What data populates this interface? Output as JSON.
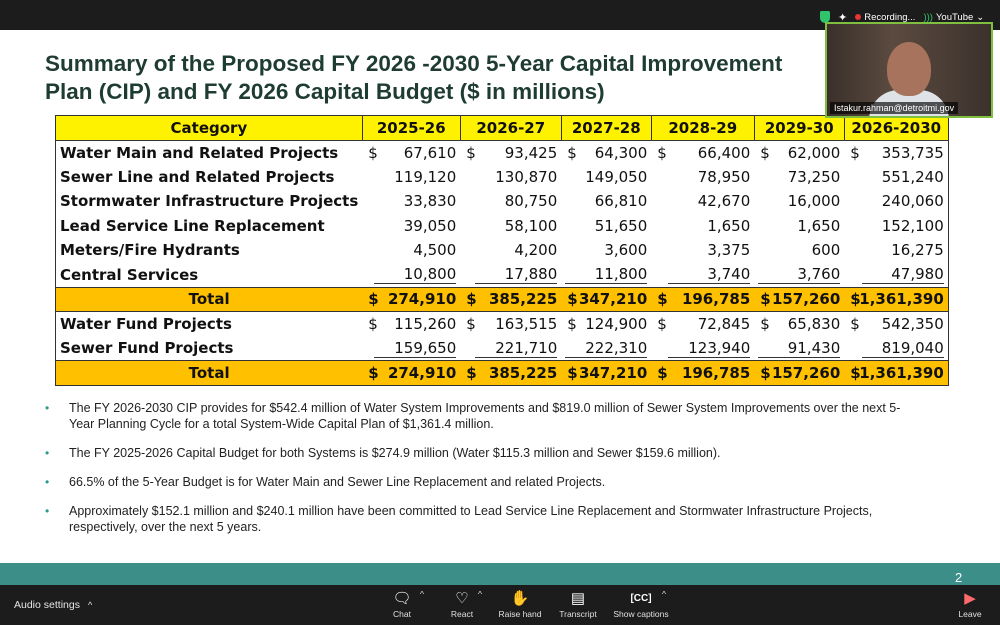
{
  "slide": {
    "title_line1": "Summary of the Proposed FY 2026 -2030 5-Year Capital Improvement",
    "title_line2": "Plan (CIP) and FY 2026 Capital Budget ($ in millions)",
    "page_number": "2",
    "colors": {
      "header_fill": "#fff200",
      "total_fill": "#ffc000",
      "title_color": "#1f3c33",
      "footer_band": "#3b8f88"
    },
    "table": {
      "headers": [
        "Category",
        "2025-26",
        "2026-27",
        "2027-28",
        "2028-29",
        "2029-30",
        "2026-2030"
      ],
      "rows": [
        {
          "category": "Water Main and Related Projects",
          "values": [
            "67,610",
            "93,425",
            "64,300",
            "66,400",
            "62,000",
            "353,735"
          ],
          "dollar": true
        },
        {
          "category": "Sewer Line and Related Projects",
          "values": [
            "119,120",
            "130,870",
            "149,050",
            "78,950",
            "73,250",
            "551,240"
          ]
        },
        {
          "category": "Stormwater Infrastructure Projects",
          "values": [
            "33,830",
            "80,750",
            "66,810",
            "42,670",
            "16,000",
            "240,060"
          ]
        },
        {
          "category": "Lead Service Line Replacement",
          "values": [
            "39,050",
            "58,100",
            "51,650",
            "1,650",
            "1,650",
            "152,100"
          ]
        },
        {
          "category": "Meters/Fire Hydrants",
          "values": [
            "4,500",
            "4,200",
            "3,600",
            "3,375",
            "600",
            "16,275"
          ]
        },
        {
          "category": "Central Services",
          "values": [
            "10,800",
            "17,880",
            "11,800",
            "3,740",
            "3,760",
            "47,980"
          ]
        }
      ],
      "total1": {
        "category": "Total",
        "values": [
          "274,910",
          "385,225",
          "347,210",
          "196,785",
          "157,260",
          "1,361,390"
        ]
      },
      "fund_rows": [
        {
          "category": "Water Fund Projects",
          "values": [
            "115,260",
            "163,515",
            "124,900",
            "72,845",
            "65,830",
            "542,350"
          ]
        },
        {
          "category": "Sewer Fund Projects",
          "values": [
            "159,650",
            "221,710",
            "222,310",
            "123,940",
            "91,430",
            "819,040"
          ]
        }
      ],
      "total2": {
        "category": "Total",
        "values": [
          "274,910",
          "385,225",
          "347,210",
          "196,785",
          "157,260",
          "1,361,390"
        ]
      },
      "dollar_sign": "$"
    },
    "bullets": [
      "The FY 2026-2030 CIP provides for $542.4 million of Water System Improvements and $819.0 million of Sewer System Improvements over the next 5-Year Planning Cycle for a total System-Wide Capital Plan of $1,361.4 million.",
      "The FY 2025-2026 Capital Budget for both Systems is $274.9 million (Water $115.3 million and Sewer $159.6 million).",
      "66.5% of the 5-Year Budget is for Water Main and Sewer Line Replacement and related Projects.",
      "Approximately $152.1 million and $240.1 million  have been committed to Lead Service Line Replacement and Stormwater Infrastructure Projects, respectively, over the next 5 years."
    ]
  },
  "status": {
    "recording": "Recording...",
    "youtube": "YouTube"
  },
  "video": {
    "participant": "Istakur.rahman@detroitmi.gov"
  },
  "controls": {
    "audio_settings": "Audio settings",
    "chat": "Chat",
    "react": "React",
    "raise_hand": "Raise hand",
    "transcript": "Transcript",
    "show_captions": "Show captions",
    "leave": "Leave",
    "icons": {
      "chat": "chat-bubble-icon",
      "react": "heart-icon",
      "raise_hand": "hand-icon",
      "transcript": "document-icon",
      "captions": "cc-icon",
      "leave": "leave-icon"
    }
  }
}
